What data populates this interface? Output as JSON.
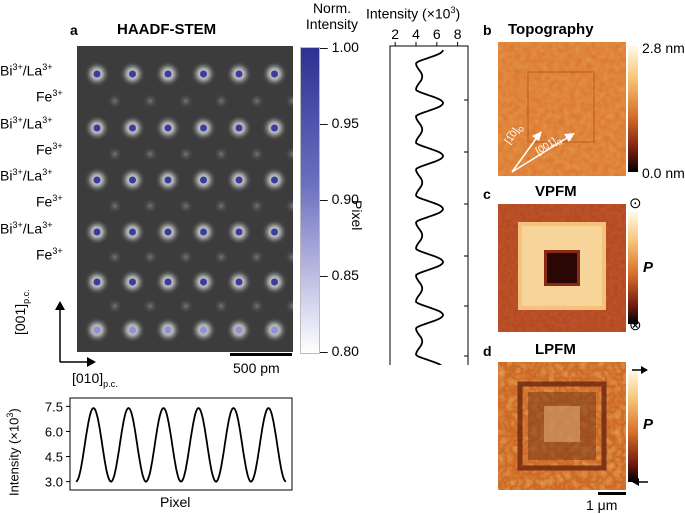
{
  "panels": {
    "a": {
      "letter": "a",
      "title": "HAADF-STEM",
      "colorbar": {
        "title_line1": "Norm.",
        "title_line2": "Intensity",
        "ticks": [
          "1.00",
          "0.95",
          "0.90",
          "0.85",
          "0.80"
        ],
        "color_top": "#2e3192",
        "color_bottom": "#ffffff"
      },
      "row_labels": [
        {
          "text": "Bi",
          "sup1": "3+",
          "mid": "/La",
          "sup2": "3+"
        },
        {
          "text": "Fe",
          "sup1": "3+"
        },
        {
          "text": "Bi",
          "sup1": "3+",
          "mid": "/La",
          "sup2": "3+"
        },
        {
          "text": "Fe",
          "sup1": "3+"
        },
        {
          "text": "Bi",
          "sup1": "3+",
          "mid": "/La",
          "sup2": "3+"
        },
        {
          "text": "Fe",
          "sup1": "3+"
        },
        {
          "text": "Bi",
          "sup1": "3+",
          "mid": "/La",
          "sup2": "3+"
        },
        {
          "text": "Fe",
          "sup1": "3+"
        }
      ],
      "axis_vertical": {
        "text": "[001]",
        "sub": "p.c."
      },
      "axis_horizontal": {
        "text": "[010]",
        "sub": "p.c."
      },
      "scalebar": "500 pm",
      "profile_bottom": {
        "ylabel": "Intensity (×10",
        "ylabel_sup": "3",
        "ylabel_end": ")",
        "xlabel": "Pixel",
        "yticks": [
          "7.5",
          "6.0",
          "4.5",
          "3.0"
        ]
      },
      "profile_right": {
        "xlabel": "Intensity (×10",
        "xlabel_sup": "3",
        "xlabel_end": ")",
        "ylabel": "Pixel",
        "xticks": [
          "2",
          "4",
          "6",
          "8"
        ]
      }
    },
    "b": {
      "letter": "b",
      "title": "Topography",
      "cbar_top": "2.8 nm",
      "cbar_bottom": "0.0 nm",
      "dir1": "[1̅0]",
      "dir1_sub": "o",
      "dir2": "[001]",
      "dir2_sub": "o"
    },
    "c": {
      "letter": "c",
      "title": "VPFM",
      "p_label": "P",
      "sym_top": "⊙",
      "sym_bottom": "⊗"
    },
    "d": {
      "letter": "d",
      "title": "LPFM",
      "p_label": "P",
      "scalebar": "1 μm"
    }
  }
}
